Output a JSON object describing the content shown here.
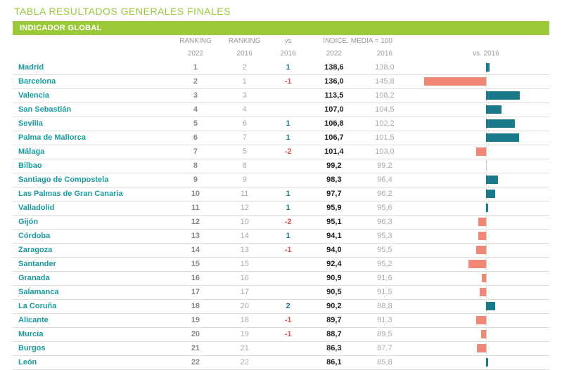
{
  "title": "TABLA RESULTADOS GENERALES FINALES",
  "section_header": "INDICADOR GLOBAL",
  "columns": {
    "ranking_group": "RANKING",
    "ranking_2022": "2022",
    "ranking_2016": "2016",
    "vs_group": "vs",
    "vs_sub": "2016",
    "indice_group": "ÍNDICE. MEDIA = 100",
    "indice_2022": "2022",
    "indice_2016": "2016",
    "bar_header": "vs. 2016"
  },
  "colors": {
    "accent_green": "#9ac93a",
    "city_link": "#1a9ba0",
    "vs_positive": "#1a7a8a",
    "vs_negative": "#d9534f",
    "bar_positive": "#1a7a8a",
    "bar_negative": "#f08878",
    "muted": "#999999",
    "border": "#dcdcdc"
  },
  "bar_scale_max": 10.0,
  "rows": [
    {
      "city": "Madrid",
      "r22": "1",
      "r16": "2",
      "vs": "1",
      "i22": "138,6",
      "i16": "138,0",
      "delta": 0.6
    },
    {
      "city": "Barcelona",
      "r22": "2",
      "r16": "1",
      "vs": "-1",
      "i22": "136,0",
      "i16": "145,8",
      "delta": -9.8
    },
    {
      "city": "Valencia",
      "r22": "3",
      "r16": "3",
      "vs": "",
      "i22": "113,5",
      "i16": "108,2",
      "delta": 5.3
    },
    {
      "city": "San Sebastián",
      "r22": "4",
      "r16": "4",
      "vs": "",
      "i22": "107,0",
      "i16": "104,5",
      "delta": 2.5
    },
    {
      "city": "Sevilla",
      "r22": "5",
      "r16": "6",
      "vs": "1",
      "i22": "106,8",
      "i16": "102,2",
      "delta": 4.6
    },
    {
      "city": "Palma de Mallorca",
      "r22": "6",
      "r16": "7",
      "vs": "1",
      "i22": "106,7",
      "i16": "101,5",
      "delta": 5.2
    },
    {
      "city": "Málaga",
      "r22": "7",
      "r16": "5",
      "vs": "-2",
      "i22": "101,4",
      "i16": "103,0",
      "delta": -1.6
    },
    {
      "city": "Bilbao",
      "r22": "8",
      "r16": "8",
      "vs": "",
      "i22": "99,2",
      "i16": "99,2",
      "delta": 0.0
    },
    {
      "city": "Santiago de Compostela",
      "r22": "9",
      "r16": "9",
      "vs": "",
      "i22": "98,3",
      "i16": "96,4",
      "delta": 1.9
    },
    {
      "city": "Las Palmas de Gran Canaria",
      "r22": "10",
      "r16": "11",
      "vs": "1",
      "i22": "97,7",
      "i16": "96,2",
      "delta": 1.5
    },
    {
      "city": "Valladolid",
      "r22": "11",
      "r16": "12",
      "vs": "1",
      "i22": "95,9",
      "i16": "95,6",
      "delta": 0.3
    },
    {
      "city": "Gijón",
      "r22": "12",
      "r16": "10",
      "vs": "-2",
      "i22": "95,1",
      "i16": "96,3",
      "delta": -1.2
    },
    {
      "city": "Córdoba",
      "r22": "13",
      "r16": "14",
      "vs": "1",
      "i22": "94,1",
      "i16": "95,3",
      "delta": -1.2
    },
    {
      "city": "Zaragoza",
      "r22": "14",
      "r16": "13",
      "vs": "-1",
      "i22": "94,0",
      "i16": "95,5",
      "delta": -1.5
    },
    {
      "city": "Santander",
      "r22": "15",
      "r16": "15",
      "vs": "",
      "i22": "92,4",
      "i16": "95,2",
      "delta": -2.8
    },
    {
      "city": "Granada",
      "r22": "16",
      "r16": "16",
      "vs": "",
      "i22": "90,9",
      "i16": "91,6",
      "delta": -0.7
    },
    {
      "city": "Salamanca",
      "r22": "17",
      "r16": "17",
      "vs": "",
      "i22": "90,5",
      "i16": "91,5",
      "delta": -1.0
    },
    {
      "city": "La Coruña",
      "r22": "18",
      "r16": "20",
      "vs": "2",
      "i22": "90,2",
      "i16": "88,8",
      "delta": 1.4
    },
    {
      "city": "Alicante",
      "r22": "19",
      "r16": "18",
      "vs": "-1",
      "i22": "89,7",
      "i16": "91,3",
      "delta": -1.6
    },
    {
      "city": "Murcia",
      "r22": "20",
      "r16": "19",
      "vs": "-1",
      "i22": "88,7",
      "i16": "89,5",
      "delta": -0.8
    },
    {
      "city": "Burgos",
      "r22": "21",
      "r16": "21",
      "vs": "",
      "i22": "86,3",
      "i16": "87,7",
      "delta": -1.4
    },
    {
      "city": "León",
      "r22": "22",
      "r16": "22",
      "vs": "",
      "i22": "86,1",
      "i16": "85,8",
      "delta": 0.3
    }
  ]
}
